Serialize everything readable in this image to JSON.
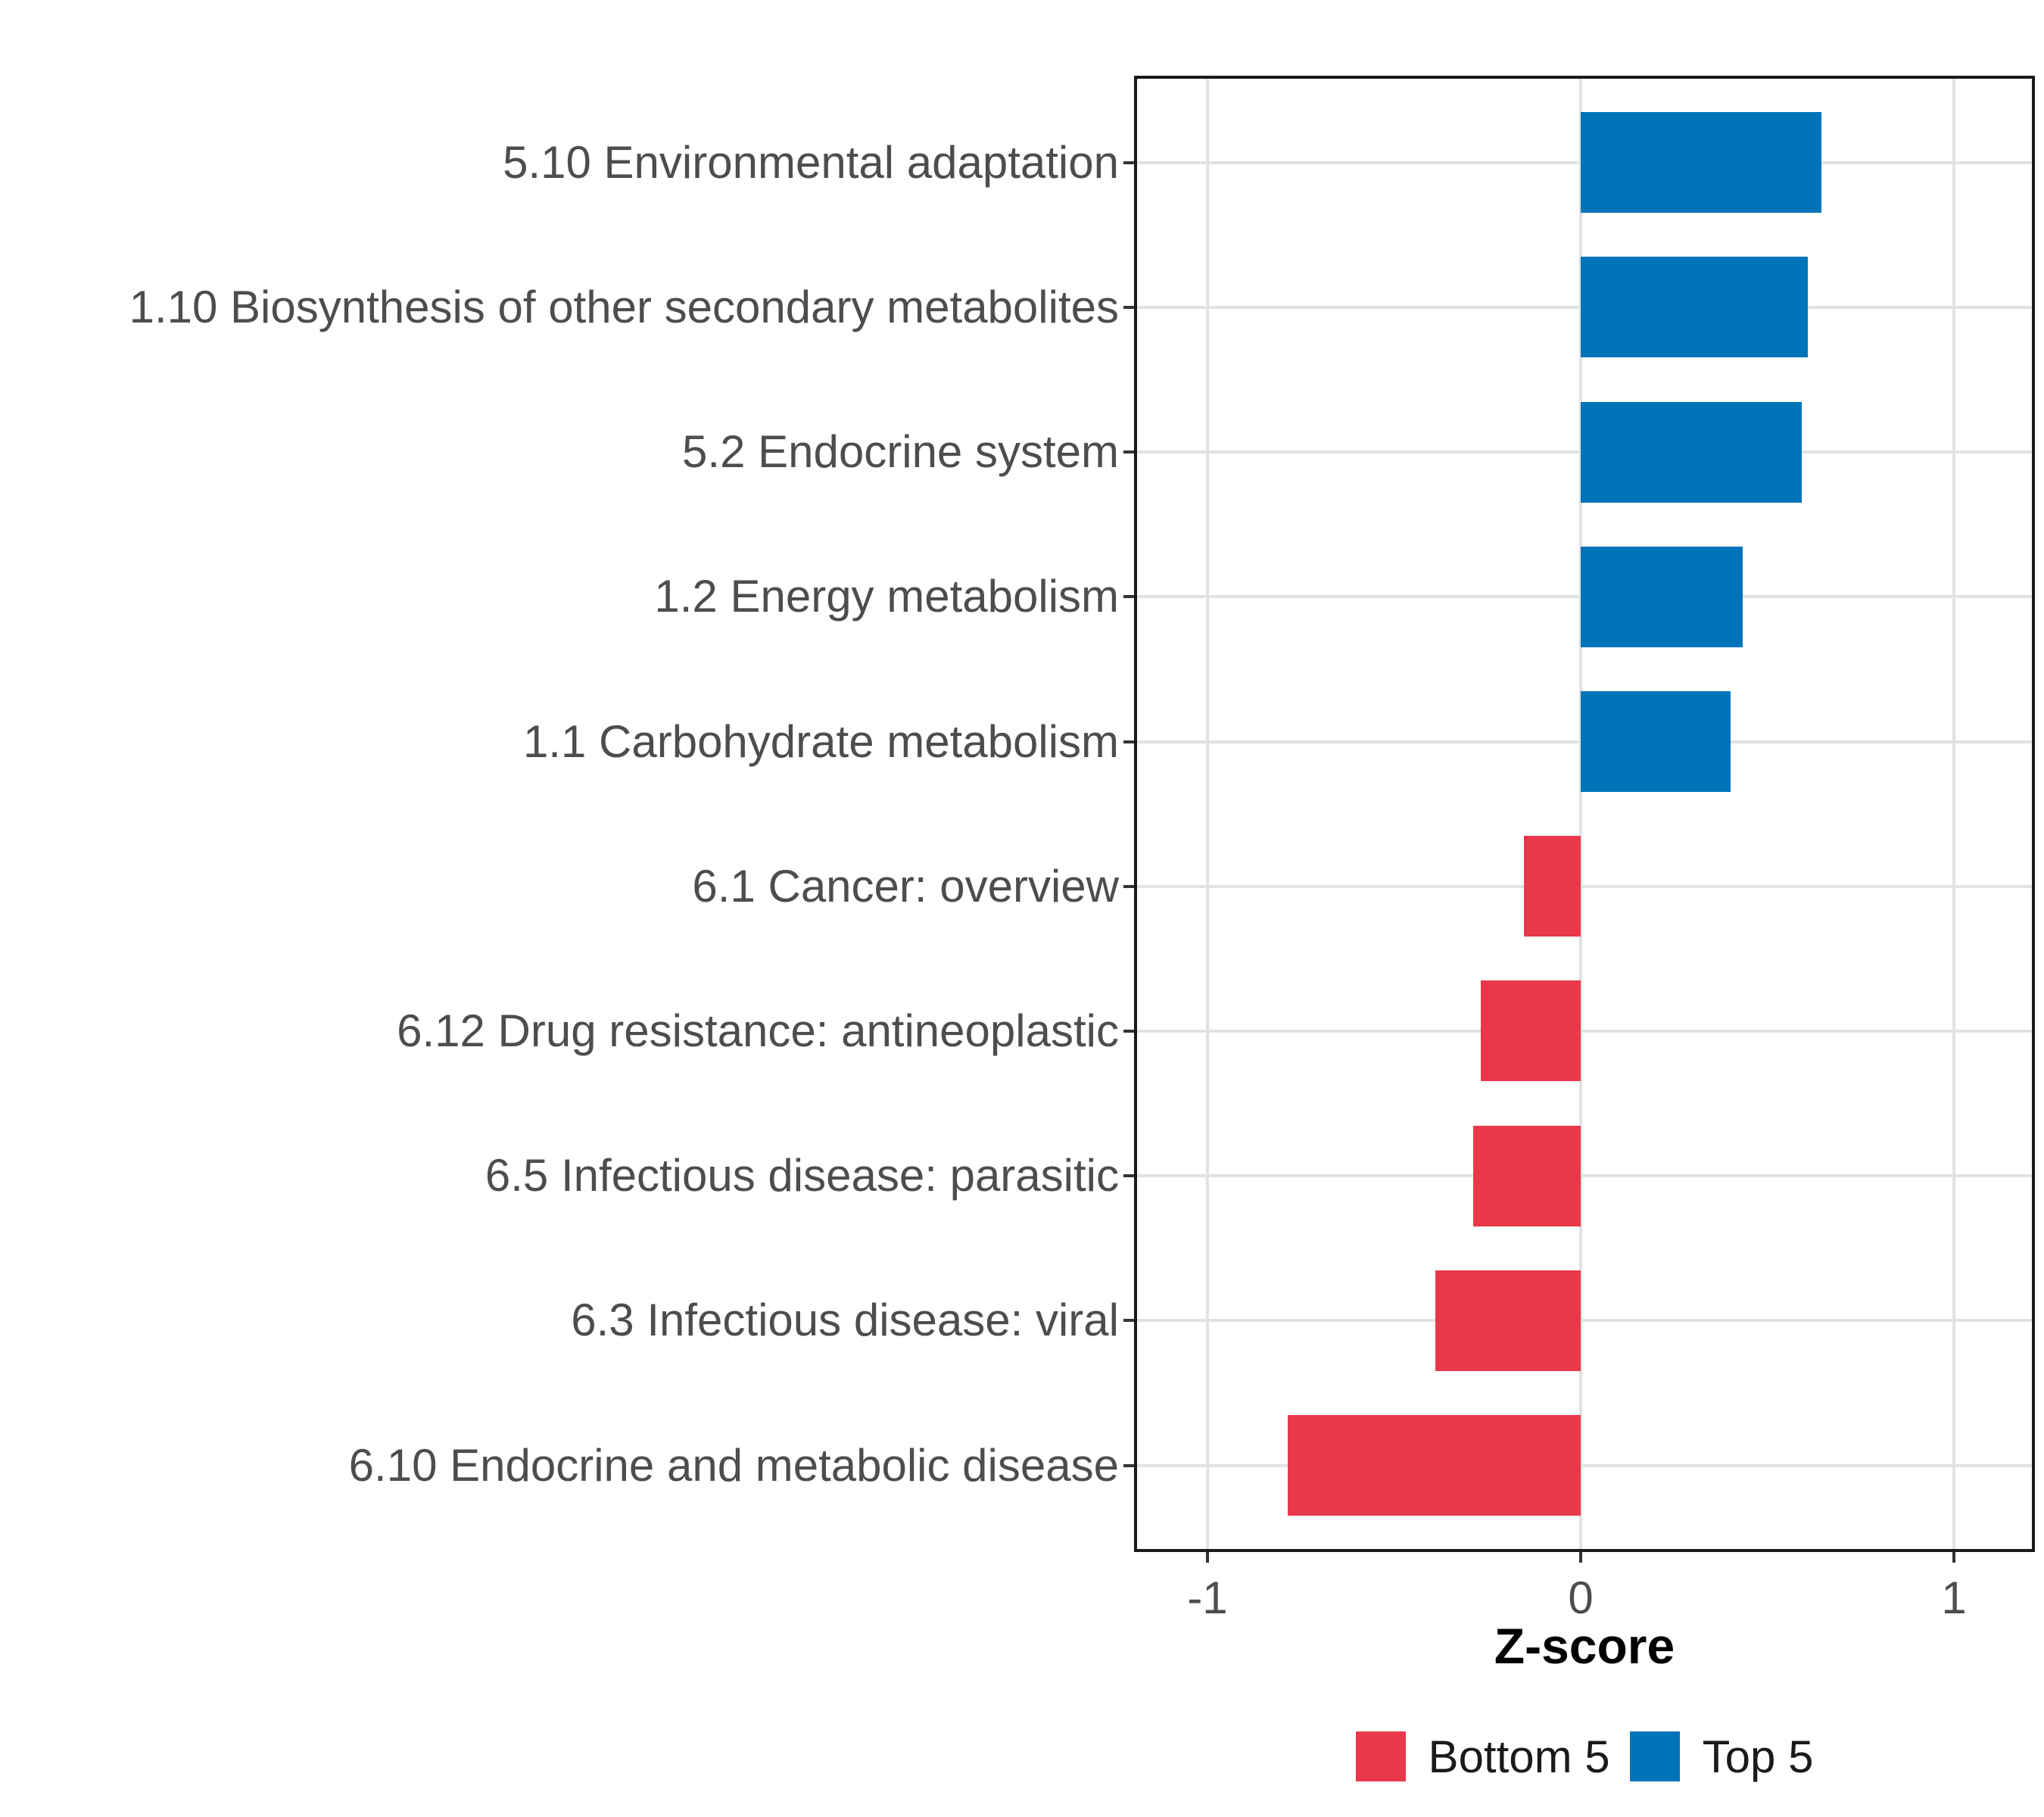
{
  "chart_data": {
    "type": "bar",
    "orientation": "horizontal",
    "title": "",
    "xlabel": "Z-score",
    "x_axis": {
      "min": -1.2,
      "max": 1.21,
      "grid": true,
      "ticks": [
        {
          "label": "-1",
          "value": -1
        },
        {
          "label": "0",
          "value": 0
        },
        {
          "label": "1",
          "value": 1
        }
      ]
    },
    "colors": {
      "Top 5": "#0074B8",
      "Bottom 5": "#E8384A"
    },
    "bars": [
      {
        "category": "5.10 Environmental adaptation",
        "value": 0.645,
        "group": "Top 5"
      },
      {
        "category": "1.10 Biosynthesis of other secondary metabolites",
        "value": 0.608,
        "group": "Top 5"
      },
      {
        "category": "5.2 Endocrine system",
        "value": 0.592,
        "group": "Top 5"
      },
      {
        "category": "1.2 Energy metabolism",
        "value": 0.434,
        "group": "Top 5"
      },
      {
        "category": "1.1 Carbohydrate metabolism",
        "value": 0.401,
        "group": "Top 5"
      },
      {
        "category": "6.1 Cancer: overview",
        "value": -0.153,
        "group": "Bottom 5"
      },
      {
        "category": "6.12 Drug resistance: antineoplastic",
        "value": -0.267,
        "group": "Bottom 5"
      },
      {
        "category": "6.5 Infectious disease: parasitic",
        "value": -0.288,
        "group": "Bottom 5"
      },
      {
        "category": "6.3 Infectious disease: viral",
        "value": -0.39,
        "group": "Bottom 5"
      },
      {
        "category": "6.10 Endocrine and metabolic disease",
        "value": -0.785,
        "group": "Bottom 5"
      }
    ],
    "legend": {
      "position": "bottom",
      "items": [
        {
          "label": "Bottom 5",
          "color": "#E8384A"
        },
        {
          "label": "Top 5",
          "color": "#0074B8"
        }
      ]
    }
  }
}
